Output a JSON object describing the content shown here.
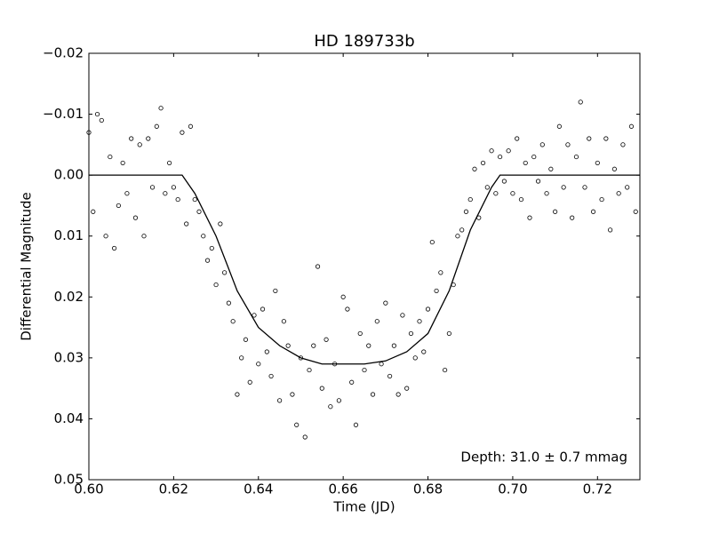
{
  "chart_data": {
    "type": "scatter",
    "title": "HD 189733b",
    "x_label": "Time (JD)",
    "y_label": "Differential Magnitude",
    "annotation": "Depth: 31.0 $\\pm$ 0.7 mmag",
    "xlim": [
      0.6,
      0.73
    ],
    "ylim": [
      -0.02,
      0.05
    ],
    "y_inverted": true,
    "xticks": [
      {
        "value": 0.6,
        "label": "0.60"
      },
      0.62,
      0.64,
      0.66,
      0.68,
      {
        "value": 0.7,
        "label": "0.70"
      },
      0.72
    ],
    "yticks": [
      {
        "value": -0.02,
        "label": "−0.02"
      },
      {
        "value": -0.01,
        "label": "−0.01"
      },
      {
        "value": 0,
        "label": "0.00"
      },
      0.01,
      0.02,
      0.03,
      0.04,
      0.05
    ],
    "grid": false,
    "series": [
      {
        "type": "scatter",
        "color": "#000000",
        "x": [
          0.6,
          0.601,
          0.602,
          0.603,
          0.604,
          0.605,
          0.606,
          0.607,
          0.608,
          0.609,
          0.61,
          0.611,
          0.612,
          0.613,
          0.614,
          0.615,
          0.616,
          0.617,
          0.618,
          0.619,
          0.62,
          0.621,
          0.622,
          0.623,
          0.624,
          0.625,
          0.626,
          0.627,
          0.628,
          0.629,
          0.63,
          0.631,
          0.632,
          0.633,
          0.634,
          0.635,
          0.636,
          0.637,
          0.638,
          0.639,
          0.64,
          0.641,
          0.642,
          0.643,
          0.644,
          0.645,
          0.646,
          0.647,
          0.648,
          0.649,
          0.65,
          0.651,
          0.652,
          0.653,
          0.654,
          0.655,
          0.656,
          0.657,
          0.658,
          0.659,
          0.66,
          0.661,
          0.662,
          0.663,
          0.664,
          0.665,
          0.666,
          0.667,
          0.668,
          0.669,
          0.67,
          0.671,
          0.672,
          0.673,
          0.674,
          0.675,
          0.676,
          0.677,
          0.678,
          0.679,
          0.68,
          0.681,
          0.682,
          0.683,
          0.684,
          0.685,
          0.686,
          0.687,
          0.688,
          0.689,
          0.69,
          0.691,
          0.692,
          0.693,
          0.694,
          0.695,
          0.696,
          0.697,
          0.698,
          0.699,
          0.7,
          0.701,
          0.702,
          0.703,
          0.704,
          0.705,
          0.706,
          0.707,
          0.708,
          0.709,
          0.71,
          0.711,
          0.712,
          0.713,
          0.714,
          0.715,
          0.716,
          0.717,
          0.718,
          0.719,
          0.72,
          0.721,
          0.722,
          0.723,
          0.724,
          0.725,
          0.726,
          0.727,
          0.728,
          0.729
        ],
        "values": [
          -0.007,
          0.006,
          -0.01,
          -0.009,
          0.01,
          -0.003,
          0.012,
          0.005,
          -0.002,
          0.003,
          -0.006,
          0.007,
          -0.005,
          0.01,
          -0.006,
          0.002,
          -0.008,
          -0.011,
          0.003,
          -0.002,
          0.002,
          0.004,
          -0.007,
          0.008,
          -0.008,
          0.004,
          0.006,
          0.01,
          0.014,
          0.012,
          0.018,
          0.008,
          0.016,
          0.021,
          0.024,
          0.036,
          0.03,
          0.027,
          0.034,
          0.023,
          0.031,
          0.022,
          0.029,
          0.033,
          0.019,
          0.037,
          0.024,
          0.028,
          0.036,
          0.041,
          0.03,
          0.043,
          0.032,
          0.028,
          0.015,
          0.035,
          0.027,
          0.038,
          0.031,
          0.037,
          0.02,
          0.022,
          0.034,
          0.041,
          0.026,
          0.032,
          0.028,
          0.036,
          0.024,
          0.031,
          0.021,
          0.033,
          0.028,
          0.036,
          0.023,
          0.035,
          0.026,
          0.03,
          0.024,
          0.029,
          0.022,
          0.011,
          0.019,
          0.016,
          0.032,
          0.026,
          0.018,
          0.01,
          0.009,
          0.006,
          0.004,
          -0.001,
          0.007,
          -0.002,
          0.002,
          -0.004,
          0.003,
          -0.003,
          0.001,
          -0.004,
          0.003,
          -0.006,
          0.004,
          -0.002,
          0.007,
          -0.003,
          0.001,
          -0.005,
          0.003,
          -0.001,
          0.006,
          -0.008,
          0.002,
          -0.005,
          0.007,
          -0.003,
          -0.012,
          0.002,
          -0.006,
          0.006,
          -0.002,
          0.004,
          -0.006,
          0.009,
          -0.001,
          0.003,
          -0.005,
          0.002,
          -0.008,
          0.006
        ]
      },
      {
        "type": "line",
        "color": "#000000",
        "x": [
          0.6,
          0.622,
          0.625,
          0.63,
          0.635,
          0.64,
          0.645,
          0.65,
          0.655,
          0.66,
          0.665,
          0.67,
          0.675,
          0.68,
          0.685,
          0.69,
          0.695,
          0.697,
          0.73
        ],
        "values": [
          0,
          0,
          0.003,
          0.01,
          0.019,
          0.025,
          0.028,
          0.03,
          0.031,
          0.031,
          0.031,
          0.0305,
          0.029,
          0.026,
          0.019,
          0.009,
          0.002,
          0,
          0
        ]
      }
    ]
  }
}
